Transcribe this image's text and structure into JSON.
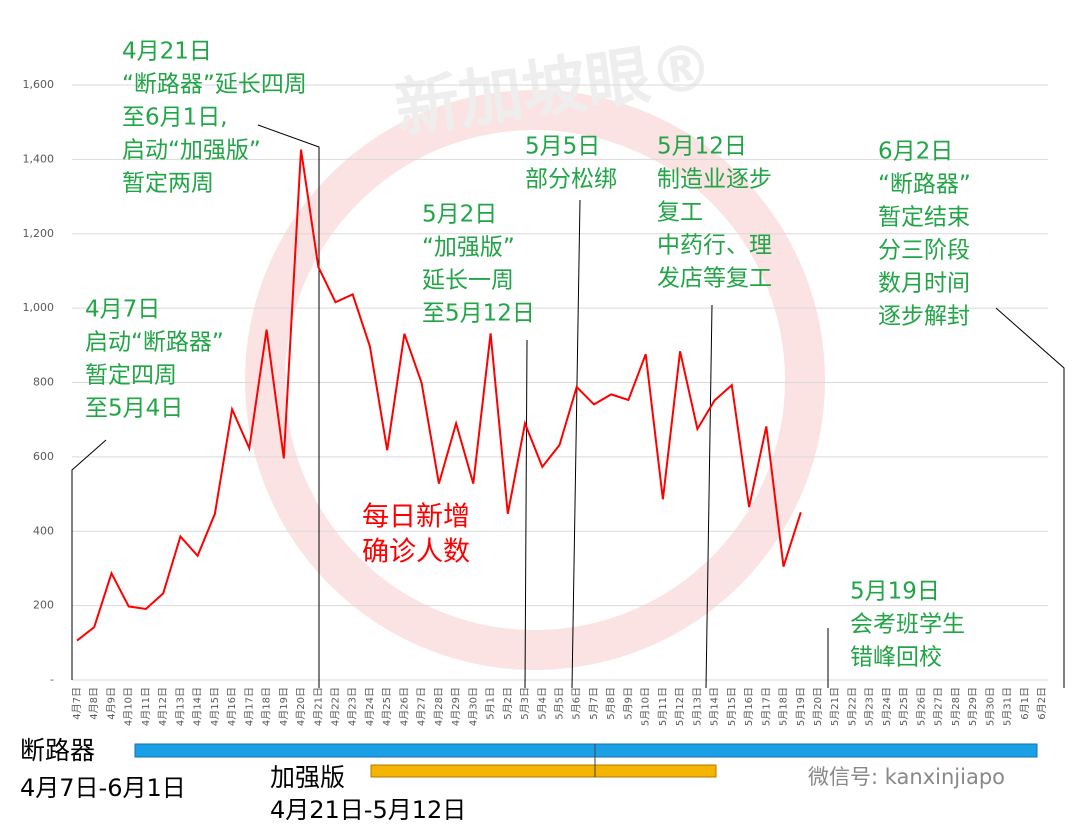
{
  "chart_data": {
    "type": "line",
    "categories": [
      "4月7日",
      "4月8日",
      "4月9日",
      "4月10日",
      "4月11日",
      "4月12日",
      "4月13日",
      "4月14日",
      "4月15日",
      "4月16日",
      "4月17日",
      "4月18日",
      "4月19日",
      "4月20日",
      "4月21日",
      "4月22日",
      "4月23日",
      "4月24日",
      "4月25日",
      "4月26日",
      "4月27日",
      "4月28日",
      "4月29日",
      "4月30日",
      "5月1日",
      "5月2日",
      "5月3日",
      "5月4日",
      "5月5日",
      "5月6日",
      "5月7日",
      "5月8日",
      "5月9日",
      "5月10日",
      "5月11日",
      "5月12日",
      "5月13日",
      "5月14日",
      "5月15日",
      "5月16日",
      "5月17日",
      "5月18日",
      "5月19日",
      "5月20日",
      "5月21日",
      "5月22日",
      "5月23日",
      "5月24日",
      "5月25日",
      "5月26日",
      "5月27日",
      "5月28日",
      "5月29日",
      "5月30日",
      "5月31日",
      "6月1日",
      "6月2日"
    ],
    "series": [
      {
        "name": "每日新增确诊人数",
        "color": "#ff0000",
        "values": [
          106,
          142,
          287,
          198,
          191,
          233,
          386,
          334,
          447,
          728,
          623,
          942,
          596,
          1426,
          1111,
          1016,
          1037,
          897,
          618,
          931,
          799,
          528,
          690,
          528,
          932,
          447,
          690,
          573,
          632,
          788,
          741,
          768,
          753,
          876,
          486,
          884,
          675,
          752,
          793,
          465,
          682,
          305,
          451,
          null,
          null,
          null,
          null,
          null,
          null,
          null,
          null,
          null,
          null,
          null,
          null,
          null,
          null
        ]
      }
    ],
    "ylim": [
      0,
      1600
    ],
    "yticks": [
      {
        "value": 0,
        "label": "-"
      },
      200,
      400,
      600,
      800,
      {
        "value": 1000,
        "label": "1,000"
      },
      {
        "value": 1200,
        "label": "1,200"
      },
      {
        "value": 1400,
        "label": "1,400"
      },
      {
        "value": 1600,
        "label": "1,600"
      }
    ],
    "grid": true,
    "annotation_color": "#21a546",
    "annotations": [
      {
        "lines": [
          "4月21日",
          "“断路器”延长四周",
          "至6月1日,",
          "启动“加强版”",
          "暂定两周"
        ]
      },
      {
        "lines": [
          "4月7日",
          "启动“断路器”",
          "暂定四周",
          "至5月4日"
        ]
      },
      {
        "lines": [
          "5月2日",
          "“加强版”",
          "延长一周",
          "至5月12日"
        ]
      },
      {
        "lines": [
          "5月5日",
          "部分松绑"
        ]
      },
      {
        "lines": [
          "5月12日",
          "制造业逐步",
          "复工",
          "中药行、理",
          "发店等复工"
        ]
      },
      {
        "lines": [
          "6月2日",
          "“断路器”",
          "暂定结束",
          "分三阶段",
          "数月时间",
          "逐步解封"
        ]
      },
      {
        "lines": [
          "5月19日",
          "会考班学生",
          "错峰回校"
        ]
      }
    ],
    "series_label": [
      "每日新增",
      "确诊人数"
    ],
    "periods": [
      {
        "name": "断路器",
        "range": "4月7日-6月1日",
        "color": "#1aa0e6"
      },
      {
        "name": "加强版",
        "range": "4月21日-5月12日",
        "color": "#f5b400"
      }
    ],
    "watermark": "新加坡眼®",
    "source": "微信号: kanxinjiapo"
  }
}
